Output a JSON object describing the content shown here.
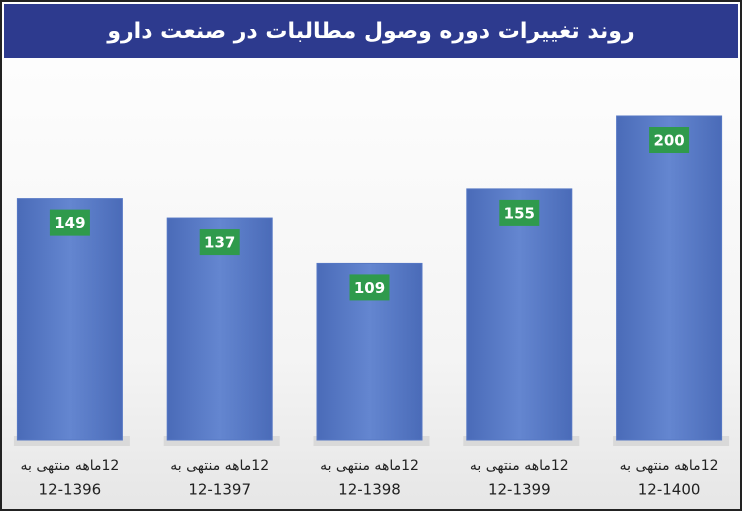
{
  "chart_data": {
    "type": "bar",
    "title": "روند تغییرات دوره وصول مطالبات در صنعت دارو",
    "categories": [
      [
        "12ماهه منتهی به",
        "12-1396"
      ],
      [
        "12ماهه منتهی به",
        "12-1397"
      ],
      [
        "12ماهه منتهی به",
        "12-1398"
      ],
      [
        "12ماهه منتهی به",
        "12-1399"
      ],
      [
        "12ماهه منتهی به",
        "12-1400"
      ]
    ],
    "values": [
      149,
      137,
      109,
      155,
      200
    ],
    "color": "#5577c4",
    "label_color": "#2f9a4c"
  }
}
